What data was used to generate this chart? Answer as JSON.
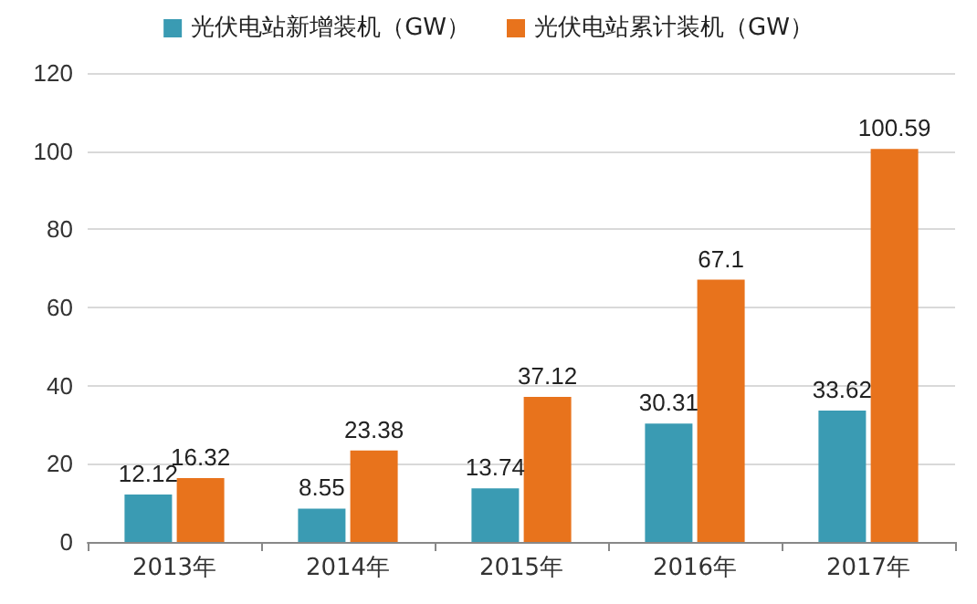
{
  "chart_data": {
    "type": "bar",
    "categories": [
      "2013年",
      "2014年",
      "2015年",
      "2016年",
      "2017年"
    ],
    "series": [
      {
        "name": "光伏电站新增装机（GW）",
        "color": "#3a9bb3",
        "values": [
          12.12,
          8.55,
          13.74,
          30.31,
          33.62
        ]
      },
      {
        "name": "光伏电站累计装机（GW）",
        "color": "#e8731c",
        "values": [
          16.32,
          23.38,
          37.12,
          67.1,
          100.59
        ]
      }
    ],
    "ylim": [
      0,
      120
    ],
    "yticks": [
      0,
      20,
      40,
      60,
      80,
      100,
      120
    ],
    "grid": "y",
    "legend": "top",
    "data_labels": true
  }
}
